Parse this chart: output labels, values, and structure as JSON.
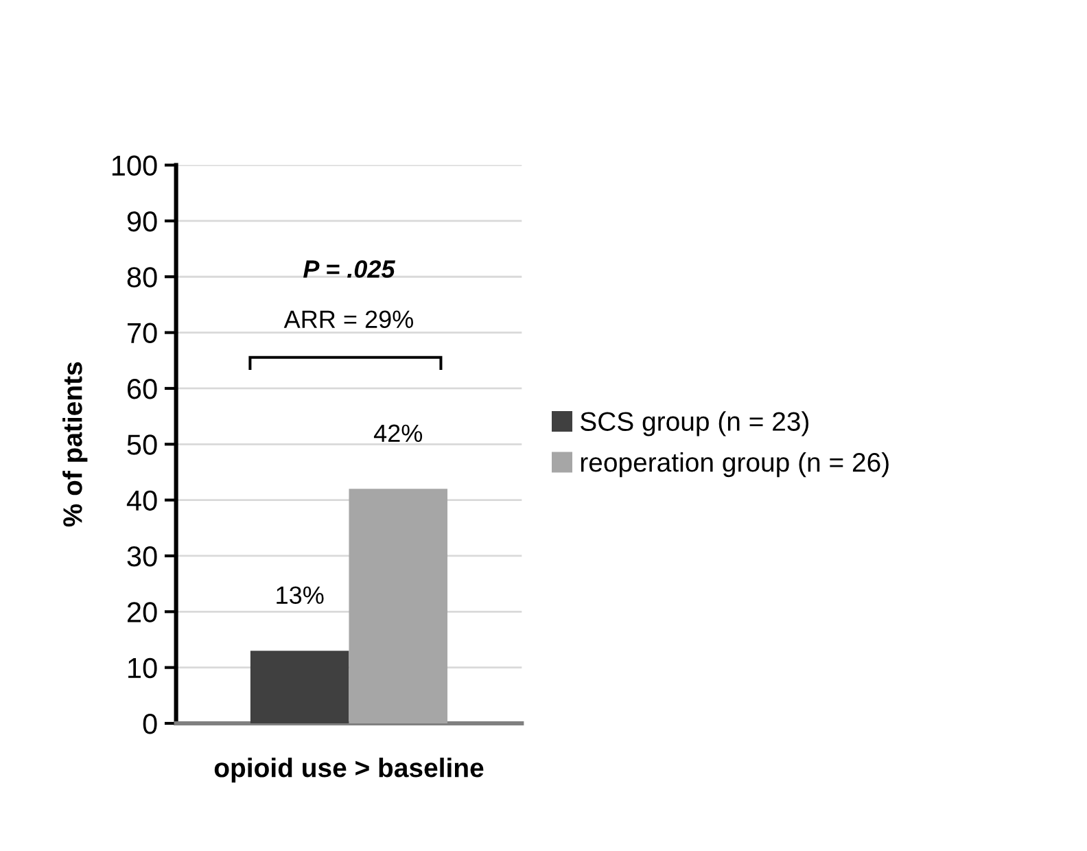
{
  "chart_data": {
    "type": "bar",
    "categories": [
      "opioid use > baseline"
    ],
    "ylabel": "% of patients",
    "series": [
      {
        "name": "SCS group (n = 23)",
        "color": "#404040",
        "values": [
          13
        ],
        "value_labels": [
          "13%"
        ]
      },
      {
        "name": "reoperation group (n = 26)",
        "color": "#a6a6a6",
        "values": [
          42
        ],
        "value_labels": [
          "42%"
        ]
      }
    ],
    "ylim": [
      0,
      100
    ],
    "yticks": [
      0,
      10,
      20,
      30,
      40,
      50,
      60,
      70,
      80,
      90,
      100
    ],
    "grid": "y",
    "legend": "right",
    "annotations": [
      "P = .025",
      "ARR = 29%"
    ]
  }
}
